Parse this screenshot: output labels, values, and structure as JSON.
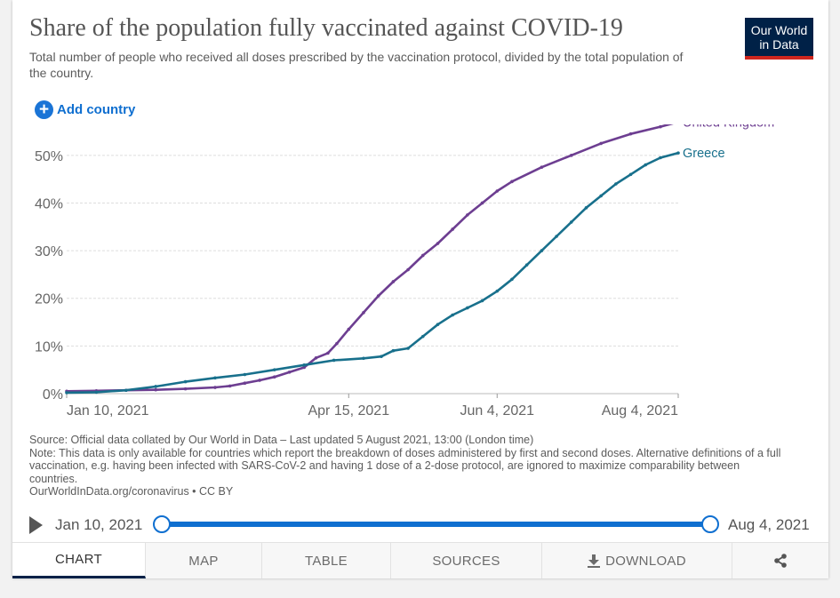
{
  "title": "Share of the population fully vaccinated against COVID-19",
  "subtitle": "Total number of people who received all doses prescribed by the vaccination protocol, divided by the total population of the country.",
  "logo": {
    "line1": "Our World",
    "line2": "in Data"
  },
  "add_country": {
    "icon": "plus-icon",
    "label": "Add country"
  },
  "colors": {
    "uk": "#6d3e91",
    "greece": "#18708c",
    "accent": "#0f6fd0",
    "brand": "#002147"
  },
  "chart_data": {
    "type": "line",
    "title": "Share of the population fully vaccinated against COVID-19",
    "xlabel": "",
    "ylabel": "",
    "ylim": [
      0,
      55
    ],
    "x_range_days": [
      0,
      206
    ],
    "x_ticks": [
      {
        "label": "Jan 10, 2021",
        "day": 0
      },
      {
        "label": "Apr 15, 2021",
        "day": 95
      },
      {
        "label": "Jun 4, 2021",
        "day": 145
      },
      {
        "label": "Aug 4, 2021",
        "day": 206
      }
    ],
    "y_ticks": [
      {
        "label": "0%",
        "value": 0
      },
      {
        "label": "10%",
        "value": 10
      },
      {
        "label": "20%",
        "value": 20
      },
      {
        "label": "30%",
        "value": 30
      },
      {
        "label": "40%",
        "value": 40
      },
      {
        "label": "50%",
        "value": 50
      }
    ],
    "grid": true,
    "series": [
      {
        "name": "United Kingdom",
        "color": "#6d3e91",
        "points": [
          [
            0,
            0.5
          ],
          [
            10,
            0.6
          ],
          [
            20,
            0.7
          ],
          [
            30,
            0.8
          ],
          [
            40,
            1.0
          ],
          [
            50,
            1.3
          ],
          [
            55,
            1.6
          ],
          [
            60,
            2.2
          ],
          [
            65,
            2.8
          ],
          [
            70,
            3.5
          ],
          [
            75,
            4.5
          ],
          [
            80,
            5.5
          ],
          [
            84,
            7.5
          ],
          [
            88,
            8.5
          ],
          [
            91,
            10.5
          ],
          [
            95,
            13.5
          ],
          [
            100,
            17
          ],
          [
            105,
            20.5
          ],
          [
            110,
            23.5
          ],
          [
            115,
            26
          ],
          [
            120,
            29
          ],
          [
            125,
            31.5
          ],
          [
            130,
            34.5
          ],
          [
            135,
            37.5
          ],
          [
            140,
            40
          ],
          [
            145,
            42.5
          ],
          [
            150,
            44.5
          ],
          [
            160,
            47.5
          ],
          [
            170,
            50
          ],
          [
            180,
            52.5
          ],
          [
            190,
            54.5
          ],
          [
            200,
            56
          ],
          [
            206,
            57
          ]
        ]
      },
      {
        "name": "Greece",
        "color": "#18708c",
        "points": [
          [
            0,
            0.2
          ],
          [
            10,
            0.3
          ],
          [
            20,
            0.7
          ],
          [
            30,
            1.5
          ],
          [
            40,
            2.5
          ],
          [
            50,
            3.3
          ],
          [
            60,
            4.0
          ],
          [
            70,
            5.0
          ],
          [
            80,
            6.0
          ],
          [
            90,
            7.0
          ],
          [
            100,
            7.4
          ],
          [
            106,
            7.8
          ],
          [
            110,
            9.0
          ],
          [
            115,
            9.5
          ],
          [
            120,
            12
          ],
          [
            125,
            14.5
          ],
          [
            130,
            16.5
          ],
          [
            135,
            18
          ],
          [
            140,
            19.5
          ],
          [
            145,
            21.5
          ],
          [
            150,
            24
          ],
          [
            155,
            27
          ],
          [
            160,
            30
          ],
          [
            165,
            33
          ],
          [
            170,
            36
          ],
          [
            175,
            39
          ],
          [
            180,
            41.5
          ],
          [
            185,
            44
          ],
          [
            190,
            46
          ],
          [
            195,
            48
          ],
          [
            200,
            49.5
          ],
          [
            206,
            50.5
          ]
        ]
      }
    ]
  },
  "source": {
    "line1": "Source: Official data collated by Our World in Data – Last updated 5 August 2021, 13:00 (London time)",
    "note": "Note: This data is only available for countries which report the breakdown of doses administered by first and second doses. Alternative definitions of a full vaccination, e.g. having been infected with SARS-CoV-2 and having 1 dose of a 2-dose protocol, are ignored to maximize comparability between countries.",
    "credit": "OurWorldInData.org/coronavirus • CC BY"
  },
  "timeline": {
    "play_icon": "play-icon",
    "start": "Jan 10, 2021",
    "end": "Aug 4, 2021",
    "start_fraction": 0,
    "end_fraction": 1
  },
  "tabs": {
    "chart": "CHART",
    "map": "MAP",
    "table": "TABLE",
    "sources": "SOURCES",
    "download": "DOWNLOAD",
    "download_icon": "download-icon",
    "share_icon": "share-icon"
  }
}
